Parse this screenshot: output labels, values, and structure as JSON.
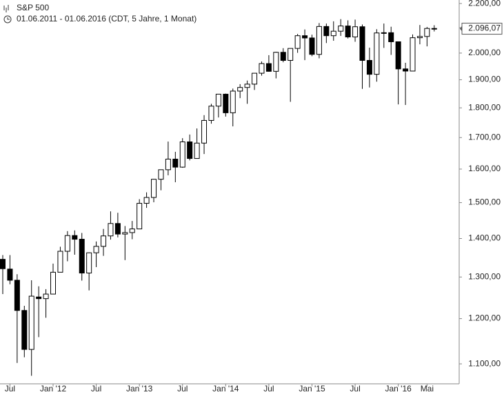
{
  "chart_data": {
    "type": "candlestick",
    "title": "S&P 500",
    "subtitle": "01.06.2011 - 01.06.2016 (CDT, 5 Jahre, 1 Monat)",
    "log_scale": true,
    "categories": [
      null,
      "Jul",
      null,
      null,
      null,
      null,
      null,
      "Jan '12",
      null,
      null,
      null,
      null,
      null,
      "Jul",
      null,
      null,
      null,
      null,
      null,
      "Jan '13",
      null,
      null,
      null,
      null,
      null,
      "Jul",
      null,
      null,
      null,
      null,
      null,
      "Jan '14",
      null,
      null,
      null,
      null,
      null,
      "Jul",
      null,
      null,
      null,
      null,
      null,
      "Jan '15",
      null,
      null,
      null,
      null,
      null,
      "Jul",
      null,
      null,
      null,
      null,
      null,
      "Jan '16",
      null,
      null,
      null,
      "Mai",
      null
    ],
    "open": [
      1345,
      1320,
      1292,
      1219,
      1131,
      1251,
      1247,
      1258,
      1312,
      1366,
      1408,
      1398,
      1310,
      1362,
      1379,
      1407,
      1441,
      1412,
      1416,
      1426,
      1498,
      1515,
      1569,
      1598,
      1631,
      1606,
      1686,
      1633,
      1682,
      1757,
      1806,
      1848,
      1783,
      1859,
      1872,
      1884,
      1924,
      1960,
      1931,
      2003,
      1972,
      2018,
      2068,
      2059,
      1995,
      2105,
      2068,
      2086,
      2107,
      2063,
      2104,
      1972,
      1920,
      2079,
      2080,
      2044,
      1940,
      1932,
      2060,
      2065,
      2097
    ],
    "high": [
      1356,
      1356,
      1307,
      1230,
      1292,
      1277,
      1270,
      1334,
      1378,
      1420,
      1422,
      1415,
      1363,
      1392,
      1426,
      1475,
      1471,
      1434,
      1448,
      1510,
      1530,
      1570,
      1598,
      1687,
      1654,
      1698,
      1710,
      1730,
      1775,
      1814,
      1849,
      1850,
      1868,
      1884,
      1897,
      1924,
      1968,
      1992,
      2005,
      2019,
      2018,
      2075,
      2093,
      2072,
      2119,
      2117,
      2126,
      2135,
      2130,
      2133,
      2113,
      2021,
      2094,
      2117,
      2104,
      2044,
      1963,
      2073,
      2111,
      2103,
      2110
    ],
    "low": [
      1258,
      1282,
      1102,
      1114,
      1075,
      1158,
      1202,
      1258,
      1312,
      1340,
      1357,
      1291,
      1267,
      1325,
      1354,
      1397,
      1403,
      1343,
      1398,
      1426,
      1485,
      1501,
      1536,
      1581,
      1560,
      1604,
      1627,
      1633,
      1647,
      1746,
      1767,
      1770,
      1737,
      1834,
      1814,
      1863,
      1915,
      1930,
      1905,
      1965,
      1821,
      2001,
      1973,
      1988,
      1980,
      2039,
      2048,
      2067,
      2057,
      2044,
      1867,
      1872,
      1893,
      2020,
      1993,
      1812,
      1810,
      1932,
      2034,
      2026,
      2085
    ],
    "close": [
      1321,
      1292,
      1219,
      1131,
      1253,
      1247,
      1258,
      1312,
      1366,
      1408,
      1398,
      1310,
      1362,
      1379,
      1407,
      1441,
      1412,
      1416,
      1426,
      1498,
      1515,
      1569,
      1598,
      1631,
      1606,
      1686,
      1633,
      1682,
      1757,
      1806,
      1848,
      1783,
      1859,
      1872,
      1884,
      1924,
      1960,
      1931,
      2003,
      1972,
      2018,
      2068,
      2059,
      1995,
      2105,
      2068,
      2086,
      2107,
      2063,
      2104,
      1972,
      1920,
      2079,
      2080,
      2044,
      1940,
      1932,
      2060,
      2065,
      2097,
      2096.07
    ],
    "last_value": 2096.07,
    "last_value_label": "2.096,07",
    "ylim": [
      1046,
      2215
    ],
    "yticks": [
      {
        "value": 1100,
        "label": "1.100,00"
      },
      {
        "value": 1200,
        "label": "1.200,00"
      },
      {
        "value": 1300,
        "label": "1.300,00"
      },
      {
        "value": 1400,
        "label": "1.400,00"
      },
      {
        "value": 1500,
        "label": "1.500,00"
      },
      {
        "value": 1600,
        "label": "1.600,00"
      },
      {
        "value": 1700,
        "label": "1.700,00"
      },
      {
        "value": 1800,
        "label": "1.800,00"
      },
      {
        "value": 1900,
        "label": "1.900,00"
      },
      {
        "value": 2000,
        "label": "2.000,00"
      },
      {
        "value": 2100,
        "label": "2.100,00"
      },
      {
        "value": 2200,
        "label": "2.200,00"
      }
    ],
    "up_color": "#ffffff",
    "down_color": "#000000"
  }
}
